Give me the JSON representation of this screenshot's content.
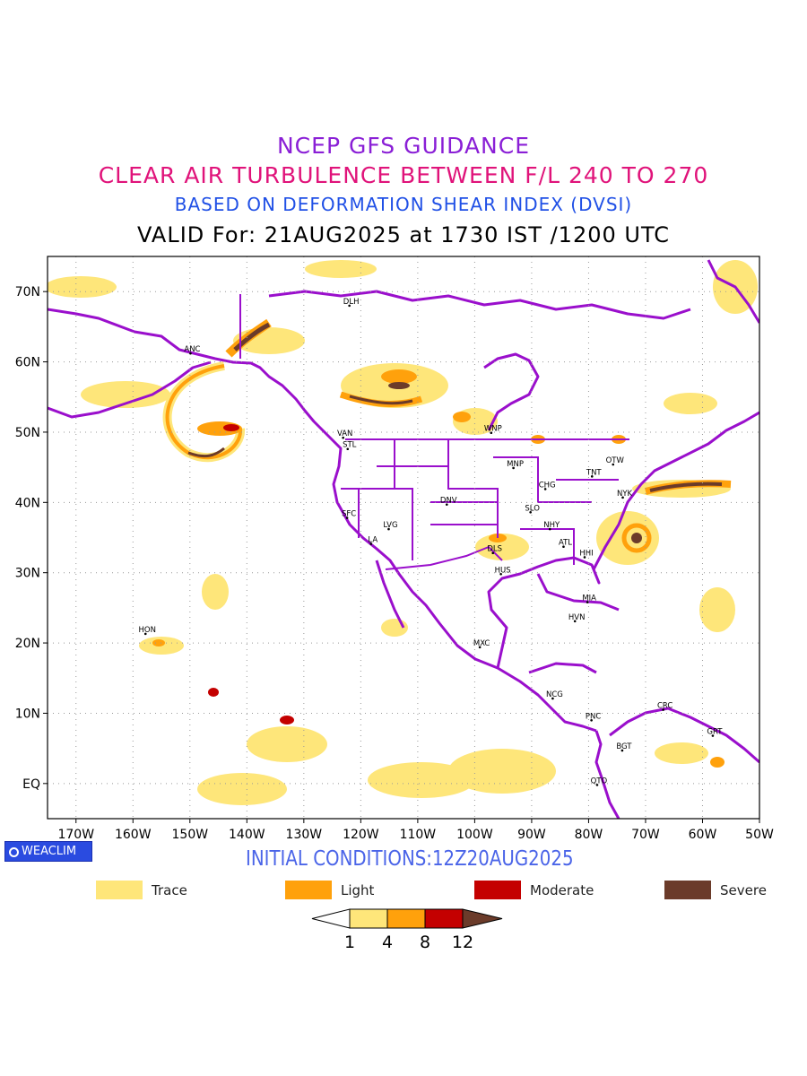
{
  "title": {
    "line1": "NCEP GFS GUIDANCE",
    "line2": "CLEAR AIR TURBULENCE BETWEEN F/L 240 TO 270",
    "line3": "BASED ON DEFORMATION SHEAR INDEX (DVSI)",
    "line4": "VALID For: 21AUG2025 at 1730 IST /1200 UTC"
  },
  "axes": {
    "lat_labels": [
      "70N",
      "60N",
      "50N",
      "40N",
      "30N",
      "20N",
      "10N",
      "EQ"
    ],
    "lon_labels": [
      "170W",
      "160W",
      "150W",
      "140W",
      "130W",
      "120W",
      "110W",
      "100W",
      "90W",
      "80W",
      "70W",
      "60W",
      "50W"
    ],
    "lat_range": [
      -5,
      75
    ],
    "lon_range": [
      -175,
      -50
    ],
    "grid": "dotted"
  },
  "stations": [
    {
      "code": "ANC",
      "lat": 61.2,
      "lon": -149.9
    },
    {
      "code": "DLH",
      "lat": 68.0,
      "lon": -122.0
    },
    {
      "code": "VAN",
      "lat": 49.2,
      "lon": -123.1
    },
    {
      "code": "STL",
      "lat": 47.6,
      "lon": -122.3
    },
    {
      "code": "WNP",
      "lat": 49.9,
      "lon": -97.1
    },
    {
      "code": "MNP",
      "lat": 44.9,
      "lon": -93.2
    },
    {
      "code": "OTW",
      "lat": 45.4,
      "lon": -75.7
    },
    {
      "code": "TNT",
      "lat": 43.7,
      "lon": -79.4
    },
    {
      "code": "CHG",
      "lat": 41.9,
      "lon": -87.6
    },
    {
      "code": "NYK",
      "lat": 40.7,
      "lon": -74.0
    },
    {
      "code": "DNV",
      "lat": 39.7,
      "lon": -104.9
    },
    {
      "code": "SFC",
      "lat": 37.8,
      "lon": -122.4
    },
    {
      "code": "SLO",
      "lat": 38.6,
      "lon": -90.2
    },
    {
      "code": "LVG",
      "lat": 36.2,
      "lon": -115.1
    },
    {
      "code": "NHY",
      "lat": 36.2,
      "lon": -86.8
    },
    {
      "code": "LA",
      "lat": 34.1,
      "lon": -118.2
    },
    {
      "code": "ATL",
      "lat": 33.7,
      "lon": -84.4
    },
    {
      "code": "DLS",
      "lat": 32.8,
      "lon": -96.8
    },
    {
      "code": "HHI",
      "lat": 32.2,
      "lon": -80.7
    },
    {
      "code": "HUS",
      "lat": 29.8,
      "lon": -95.4
    },
    {
      "code": "MIA",
      "lat": 25.8,
      "lon": -80.2
    },
    {
      "code": "HVN",
      "lat": 23.1,
      "lon": -82.4
    },
    {
      "code": "HON",
      "lat": 21.3,
      "lon": -157.8
    },
    {
      "code": "MXC",
      "lat": 19.4,
      "lon": -99.1
    },
    {
      "code": "NCG",
      "lat": 12.1,
      "lon": -86.3
    },
    {
      "code": "CRC",
      "lat": 10.5,
      "lon": -66.9
    },
    {
      "code": "PNC",
      "lat": 9.0,
      "lon": -79.5
    },
    {
      "code": "GRT",
      "lat": 6.8,
      "lon": -58.2
    },
    {
      "code": "BGT",
      "lat": 4.7,
      "lon": -74.1
    },
    {
      "code": "QTO",
      "lat": -0.2,
      "lon": -78.5
    }
  ],
  "initial_conditions": "INITIAL CONDITIONS:12Z20AUG2025",
  "logo_text": "WEACLIM",
  "legend": [
    {
      "label": "Trace",
      "color": "#fee67a"
    },
    {
      "label": "Light",
      "color": "#ffa10c"
    },
    {
      "label": "Moderate",
      "color": "#c40000"
    },
    {
      "label": "Severe",
      "color": "#6b3b2a"
    }
  ],
  "colorbar": {
    "ticks": [
      "1",
      "4",
      "8",
      "12"
    ],
    "colors": [
      "#ffffff",
      "#fee67a",
      "#ffa10c",
      "#c40000",
      "#6b3b2a"
    ]
  },
  "colors": {
    "boundaries": "#9a0fcc",
    "grid": "#999999"
  }
}
